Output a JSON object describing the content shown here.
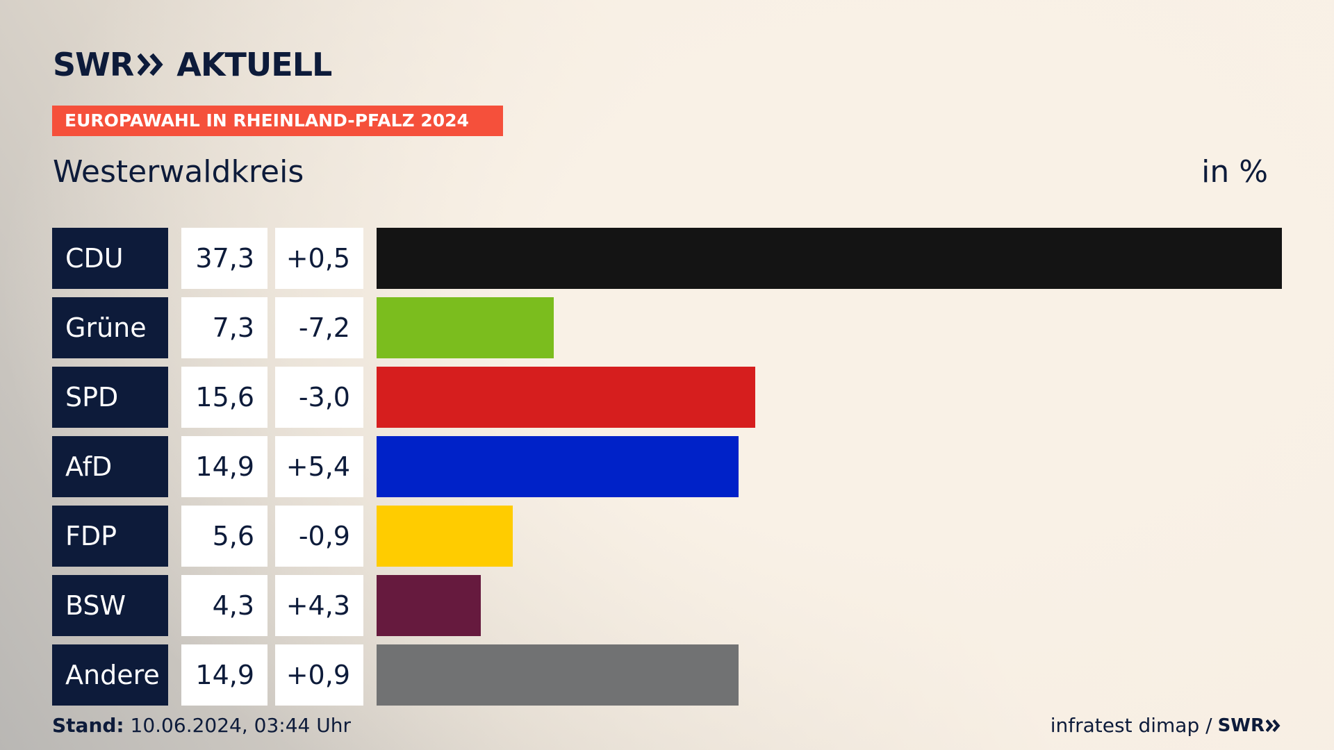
{
  "header": {
    "logo": "SWR",
    "logo_suffix": "AKTUELL",
    "banner": "EUROPAWAHL IN RHEINLAND-PFALZ 2024"
  },
  "chart_data": {
    "type": "bar",
    "orientation": "horizontal",
    "title": "Westerwaldkreis",
    "unit": "in %",
    "categories": [
      "CDU",
      "Grüne",
      "SPD",
      "AfD",
      "FDP",
      "BSW",
      "Andere"
    ],
    "values": [
      37.3,
      7.3,
      15.6,
      14.9,
      5.6,
      4.3,
      14.9
    ],
    "value_labels": [
      "37,3",
      "7,3",
      "15,6",
      "14,9",
      "5,6",
      "4,3",
      "14,9"
    ],
    "changes": [
      0.5,
      -7.2,
      -3.0,
      5.4,
      -0.9,
      4.3,
      0.9
    ],
    "change_labels": [
      "+0,5",
      "-7,2",
      "-3,0",
      "+5,4",
      "-0,9",
      "+4,3",
      "+0,9"
    ],
    "colors": [
      "#141414",
      "#7bbd1e",
      "#d61e1e",
      "#0022c8",
      "#ffcc00",
      "#661a3e",
      "#717273"
    ]
  },
  "footer": {
    "stand_label": "Stand:",
    "stand": "10.06.2024, 03:44 Uhr",
    "source": "infratest dimap /",
    "source_logo": "SWR"
  }
}
